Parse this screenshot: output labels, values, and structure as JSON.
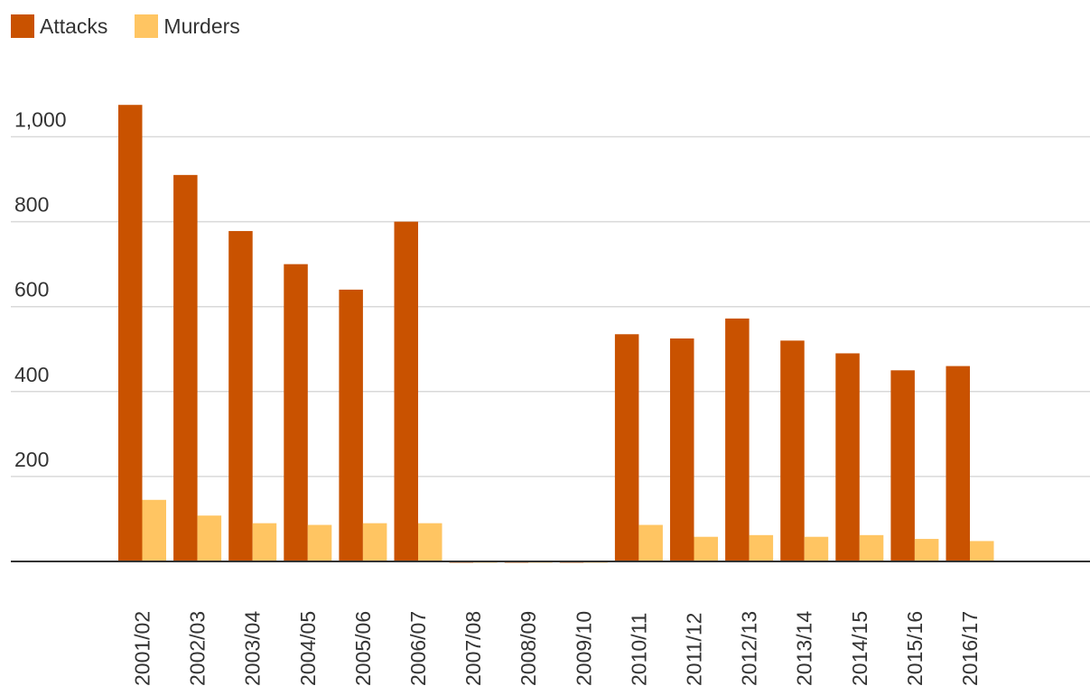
{
  "chart_data": {
    "type": "bar",
    "categories": [
      "2001/02",
      "2002/03",
      "2003/04",
      "2004/05",
      "2005/06",
      "2006/07",
      "2007/08",
      "2008/09",
      "2009/10",
      "2010/11",
      "2011/12",
      "2012/13",
      "2013/14",
      "2014/15",
      "2015/16",
      "2016/17"
    ],
    "series": [
      {
        "name": "Attacks",
        "color": "#c95200",
        "values": [
          1075,
          910,
          778,
          700,
          640,
          800,
          -3,
          -3,
          -3,
          535,
          525,
          572,
          520,
          490,
          450,
          460
        ]
      },
      {
        "name": "Murders",
        "color": "#ffc562",
        "values": [
          145,
          108,
          90,
          86,
          90,
          90,
          -3,
          -3,
          -3,
          86,
          58,
          62,
          58,
          62,
          53,
          48
        ]
      }
    ],
    "yticks": [
      200,
      400,
      600,
      800,
      1000
    ],
    "ytick_labels": [
      "200",
      "400",
      "600",
      "800",
      "1,000"
    ],
    "ylim": [
      0,
      1000
    ],
    "grid": true,
    "legend": "top-left",
    "title": "",
    "xlabel": "",
    "ylabel": ""
  }
}
